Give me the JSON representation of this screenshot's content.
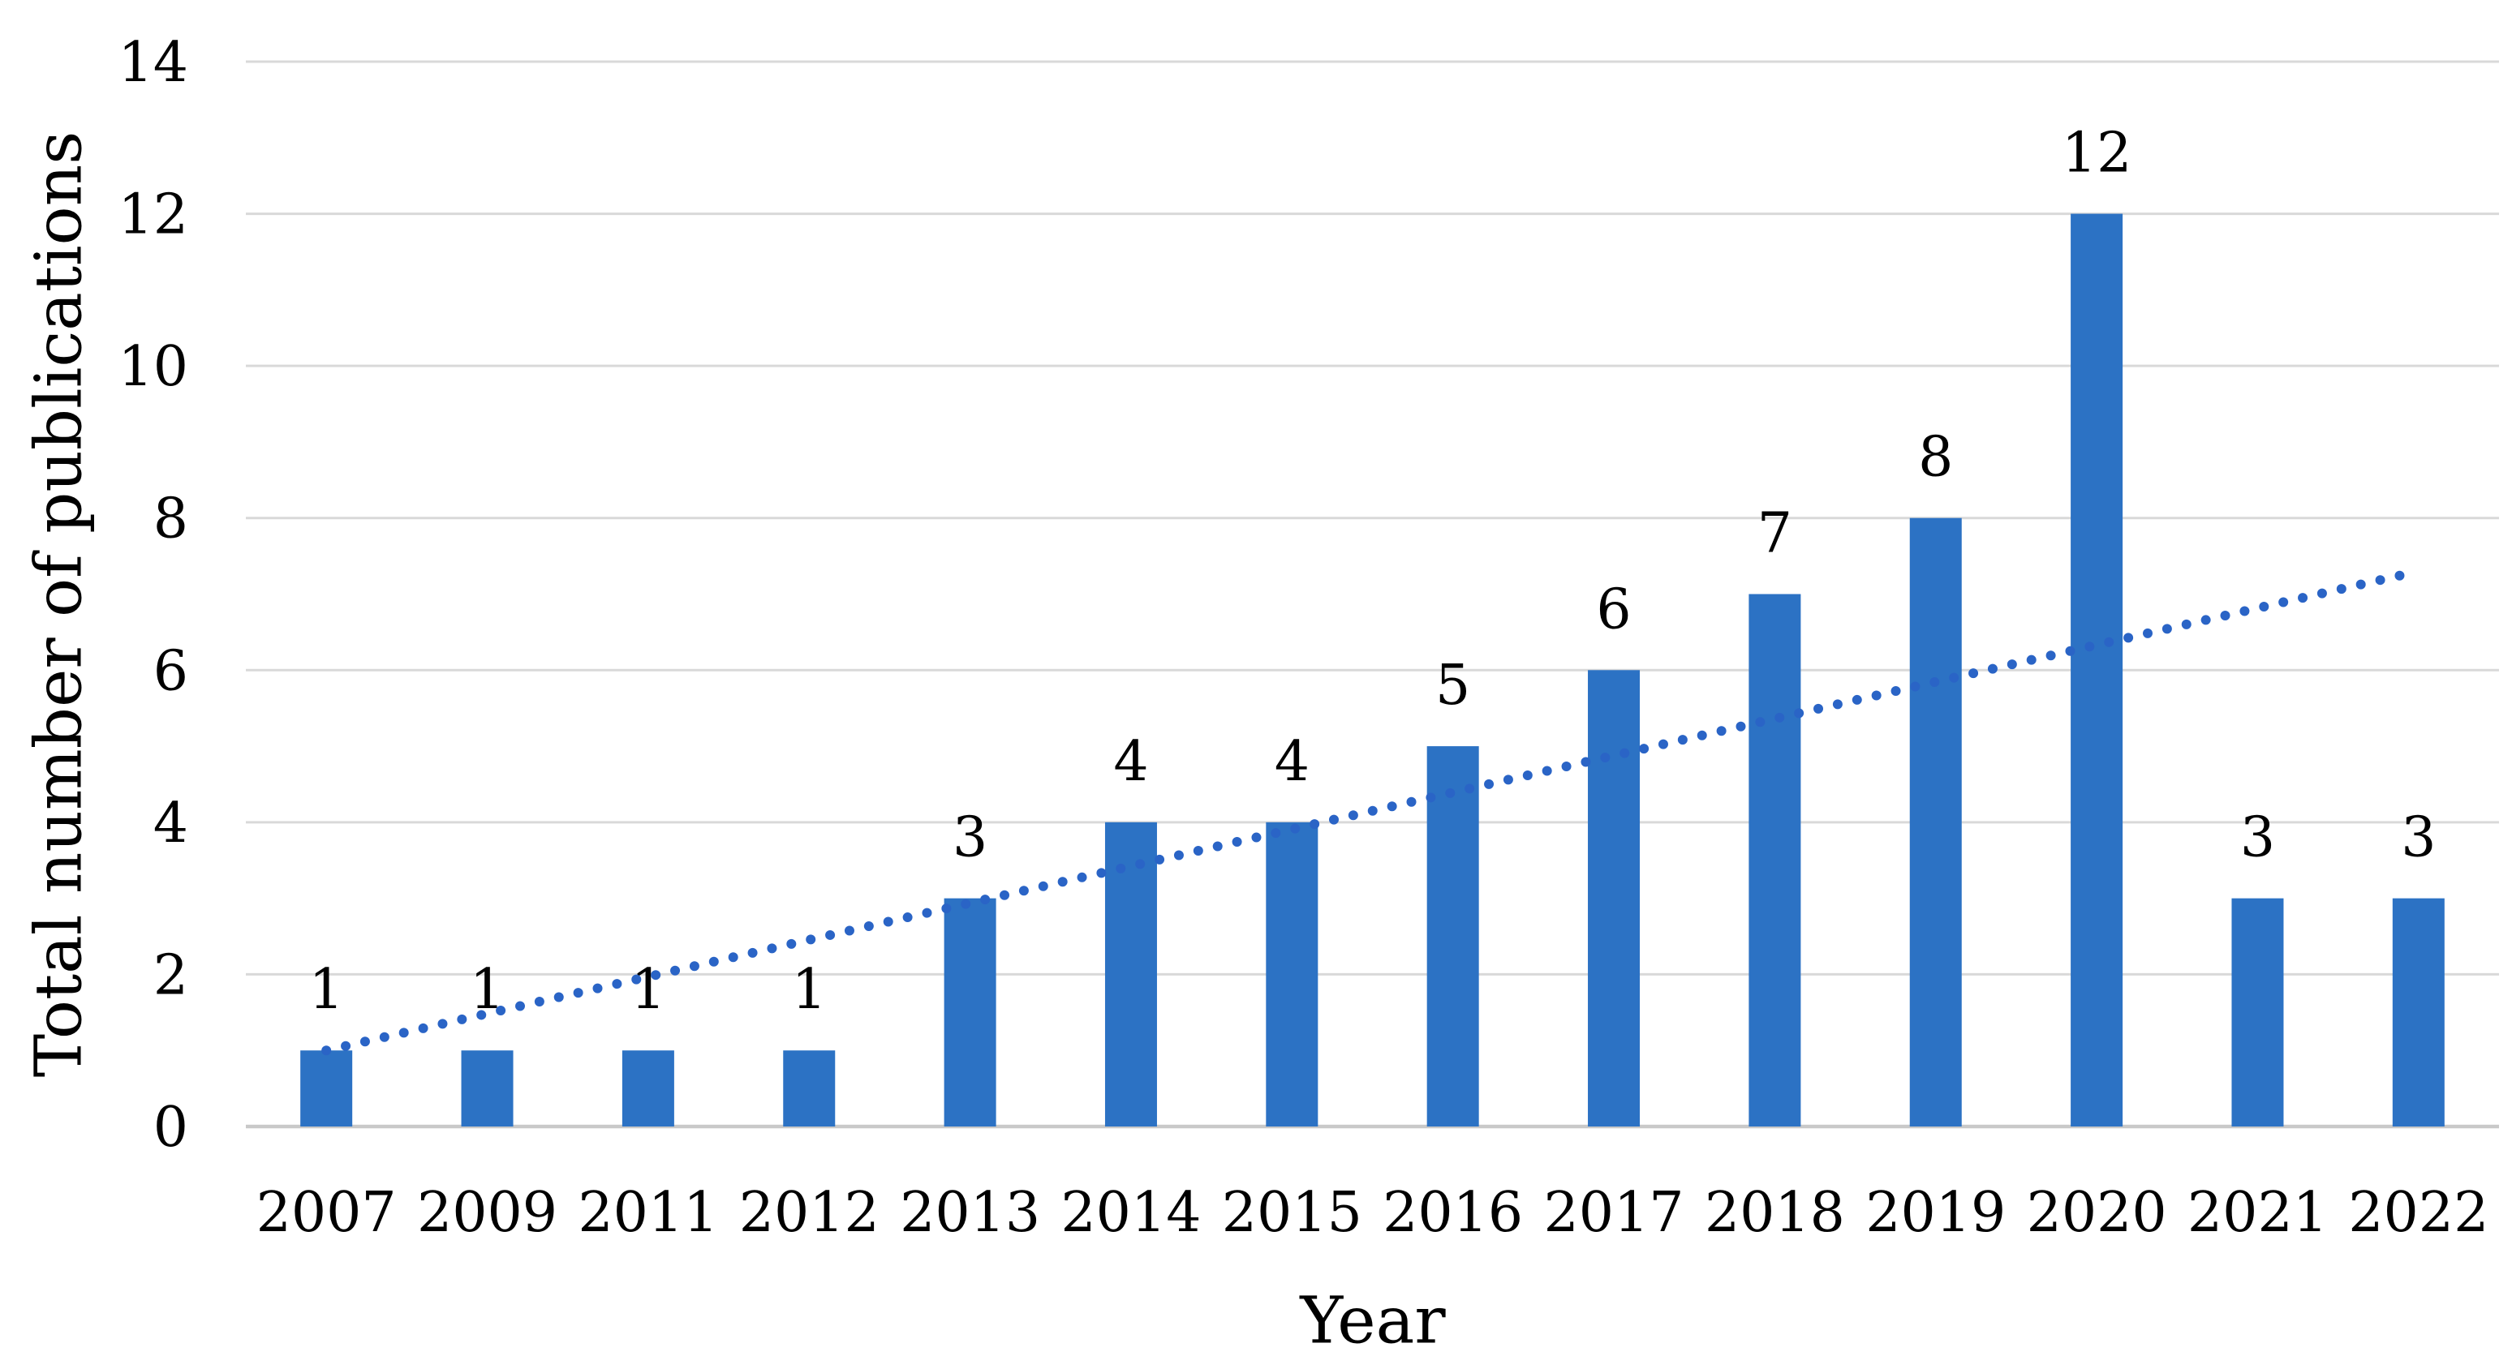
{
  "chart_data": {
    "type": "bar",
    "title": "",
    "xlabel": "Year",
    "ylabel": "Total number of publications",
    "categories": [
      "2007",
      "2009",
      "2011",
      "2012",
      "2013",
      "2014",
      "2015",
      "2016",
      "2017",
      "2018",
      "2019",
      "2020",
      "2021",
      "2022"
    ],
    "values": [
      1,
      1,
      1,
      1,
      3,
      4,
      4,
      5,
      6,
      7,
      8,
      12,
      3,
      3
    ],
    "data_labels": [
      "1",
      "1",
      "1",
      "1",
      "3",
      "4",
      "4",
      "5",
      "6",
      "7",
      "8",
      "12",
      "3",
      "3"
    ],
    "ylim": [
      0,
      14
    ],
    "ytick_step": 2,
    "ytick_labels": [
      "0",
      "2",
      "4",
      "6",
      "8",
      "10",
      "12",
      "14"
    ],
    "grid": true,
    "legend": "none",
    "colors": {
      "bar": "#2C72C4",
      "trendline_dot": "#2A64C6",
      "gridline": "#D9D9D9",
      "axis_line": "#C9C9C9",
      "text": "#000000",
      "background": "#FFFFFF"
    },
    "trendline": {
      "type": "linear",
      "style": "dotted",
      "start_value": 1.0,
      "end_value": 7.3
    }
  }
}
